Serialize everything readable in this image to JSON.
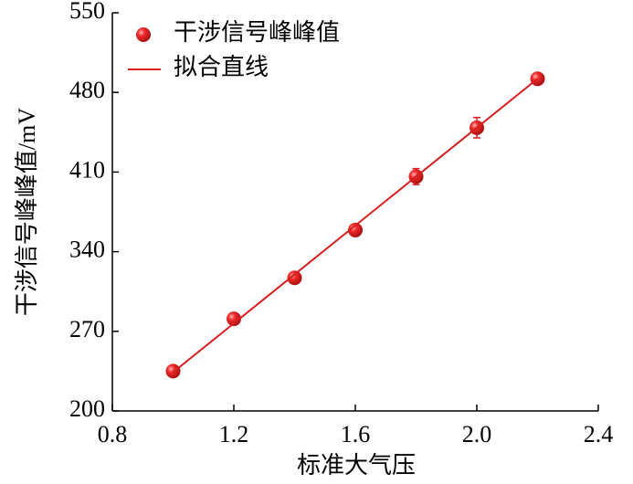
{
  "chart_data": {
    "type": "scatter",
    "x_label": "标准大气压",
    "y_label": "干涉信号峰峰值/mV",
    "xlim": [
      0.8,
      2.4
    ],
    "xticks": [
      0.8,
      1.2,
      1.6,
      {
        "value": 2,
        "label": "2.0"
      },
      2.4
    ],
    "ylim": [
      200,
      550
    ],
    "yticks": [
      200,
      270,
      340,
      410,
      480,
      550
    ],
    "legend": "upper left",
    "series": [
      {
        "name": "干涉信号峰峰值",
        "type": "scatter",
        "color": "#e31a1c",
        "x": [
          1.0,
          1.2,
          1.4,
          1.6,
          1.8,
          2.0,
          2.2
        ],
        "values": [
          235,
          281,
          317,
          359,
          406,
          449,
          492
        ],
        "errors": [
          2,
          2,
          2,
          2,
          7,
          9,
          2
        ]
      },
      {
        "name": "拟合直线",
        "type": "line",
        "color": "#d42020",
        "x": [
          1.0,
          2.2
        ],
        "values": [
          234,
          492
        ]
      }
    ]
  }
}
